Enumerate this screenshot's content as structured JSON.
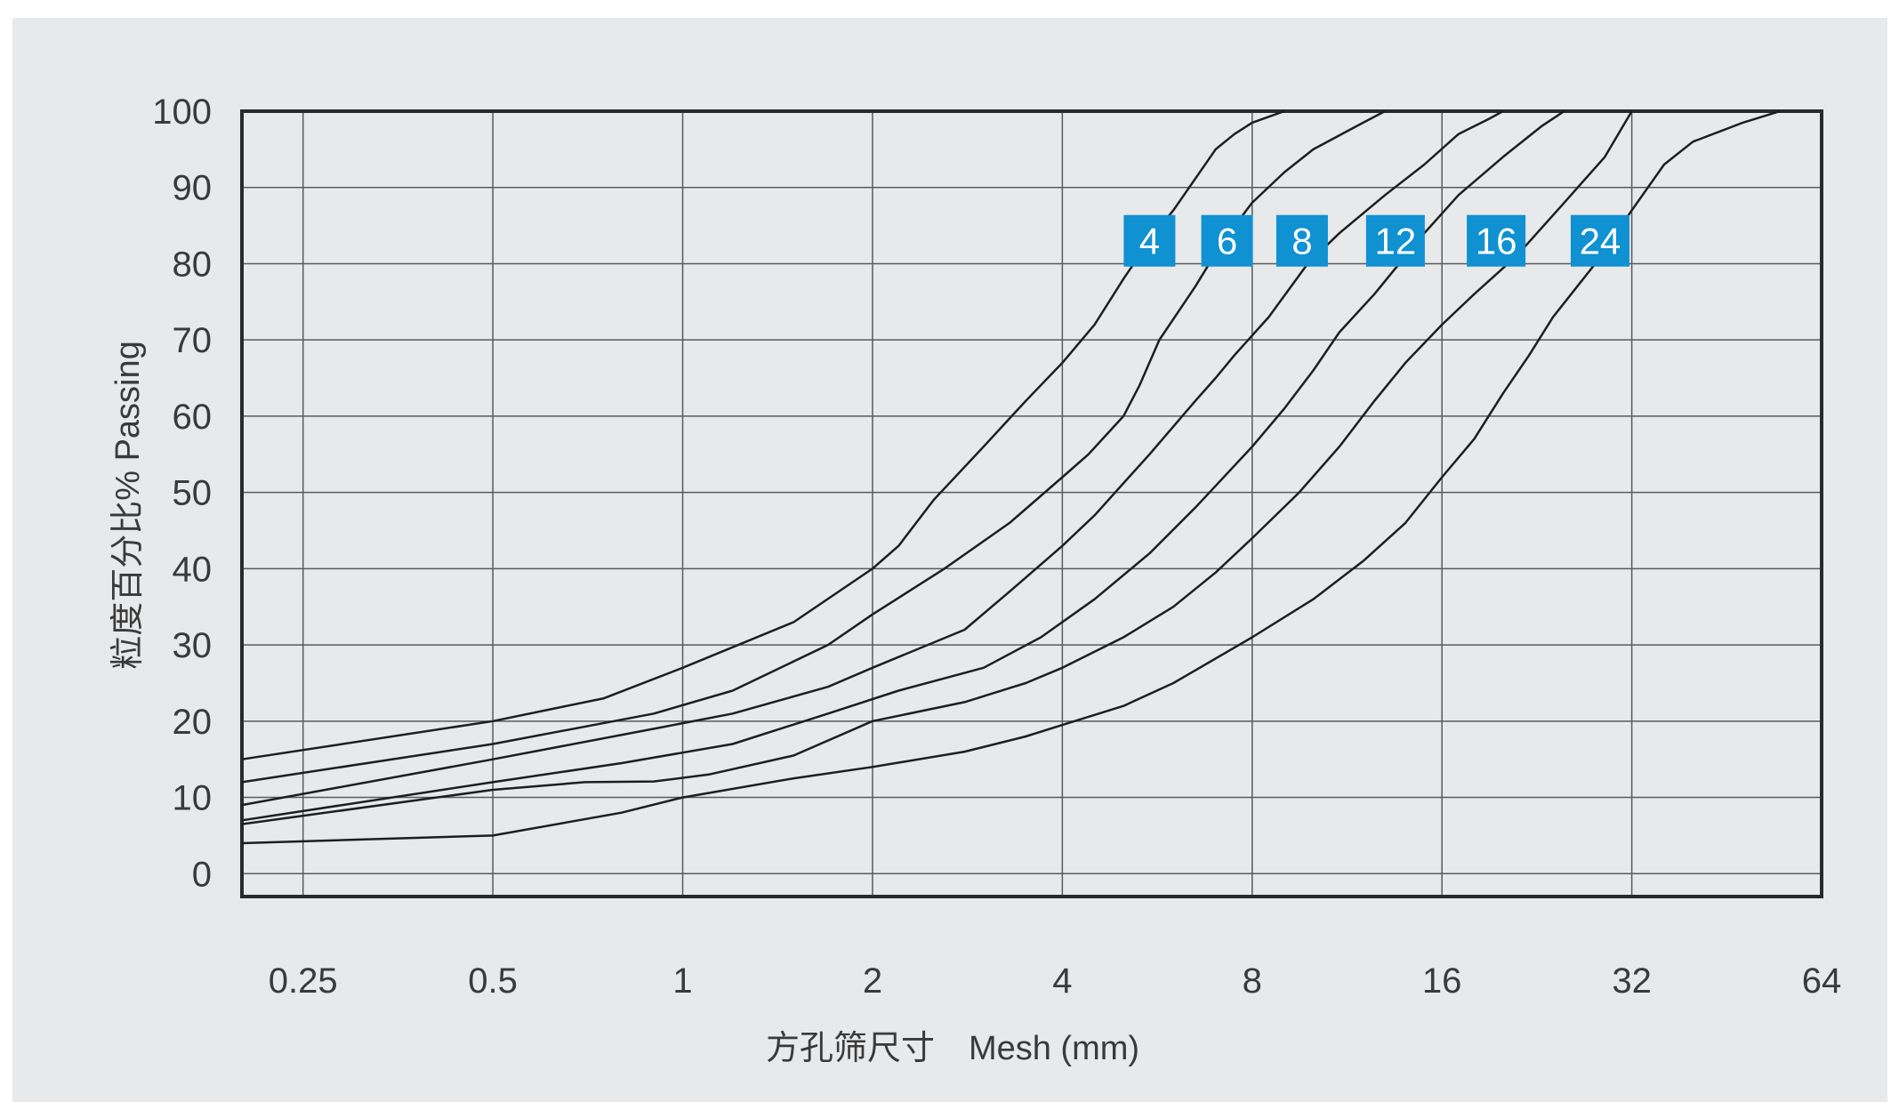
{
  "chart_data": {
    "type": "line",
    "xlabel": "方孔筛尺寸　Mesh (mm)",
    "ylabel": "粒度百分比% Passing",
    "x_scale": "log2",
    "xlim": [
      0.2,
      64
    ],
    "ylim": [
      -3,
      100
    ],
    "x_ticks": [
      {
        "value": 0.25,
        "label": "0.25"
      },
      {
        "value": 0.5,
        "label": "0.5"
      },
      {
        "value": 1,
        "label": "1"
      },
      {
        "value": 2,
        "label": "2"
      },
      {
        "value": 4,
        "label": "4"
      },
      {
        "value": 8,
        "label": "8"
      },
      {
        "value": 16,
        "label": "16"
      },
      {
        "value": 32,
        "label": "32"
      },
      {
        "value": 64,
        "label": "64"
      }
    ],
    "y_ticks": [
      0,
      10,
      20,
      30,
      40,
      50,
      60,
      70,
      80,
      90,
      100
    ],
    "grid": true,
    "label_color": "#0f91d2",
    "series": [
      {
        "name": "4",
        "label_x": 5.5,
        "label_y": 83,
        "points": [
          [
            0.2,
            15
          ],
          [
            0.5,
            20
          ],
          [
            0.75,
            23
          ],
          [
            1,
            27
          ],
          [
            1.5,
            33
          ],
          [
            2,
            40
          ],
          [
            2.2,
            43
          ],
          [
            2.5,
            49
          ],
          [
            3,
            56
          ],
          [
            3.5,
            62
          ],
          [
            4,
            67
          ],
          [
            4.5,
            72
          ],
          [
            5,
            78
          ],
          [
            5.6,
            84
          ],
          [
            6,
            87
          ],
          [
            7,
            95
          ],
          [
            7.5,
            97
          ],
          [
            8,
            98.5
          ],
          [
            9,
            100
          ]
        ]
      },
      {
        "name": "6",
        "label_x": 7.3,
        "label_y": 83,
        "points": [
          [
            0.2,
            12
          ],
          [
            0.5,
            17
          ],
          [
            0.9,
            21
          ],
          [
            1.2,
            24
          ],
          [
            1.7,
            30
          ],
          [
            2,
            34
          ],
          [
            2.6,
            40
          ],
          [
            3.3,
            46
          ],
          [
            4,
            52
          ],
          [
            4.4,
            55
          ],
          [
            5,
            60
          ],
          [
            5.3,
            64
          ],
          [
            5.7,
            70
          ],
          [
            6.5,
            77
          ],
          [
            7.2,
            83
          ],
          [
            8,
            88
          ],
          [
            9,
            92
          ],
          [
            10,
            95
          ],
          [
            12,
            98.5
          ],
          [
            13,
            100
          ]
        ]
      },
      {
        "name": "8",
        "label_x": 9.6,
        "label_y": 83,
        "points": [
          [
            0.2,
            9
          ],
          [
            0.5,
            15
          ],
          [
            0.9,
            19
          ],
          [
            1.2,
            21
          ],
          [
            1.7,
            24.5
          ],
          [
            2,
            27
          ],
          [
            2.8,
            32
          ],
          [
            3.3,
            37
          ],
          [
            4,
            43
          ],
          [
            4.5,
            47
          ],
          [
            5.5,
            55
          ],
          [
            6.5,
            62
          ],
          [
            7,
            65
          ],
          [
            7.5,
            68
          ],
          [
            8.5,
            73
          ],
          [
            9.8,
            80
          ],
          [
            11,
            84
          ],
          [
            13,
            89
          ],
          [
            15,
            93
          ],
          [
            17,
            97
          ],
          [
            19,
            99
          ],
          [
            20,
            100
          ]
        ]
      },
      {
        "name": "12",
        "label_x": 13.5,
        "label_y": 83,
        "points": [
          [
            0.2,
            7
          ],
          [
            0.5,
            12
          ],
          [
            0.8,
            14.5
          ],
          [
            1.2,
            17
          ],
          [
            1.7,
            21
          ],
          [
            2.2,
            24
          ],
          [
            3,
            27
          ],
          [
            3.7,
            31
          ],
          [
            4.5,
            36
          ],
          [
            5.5,
            42
          ],
          [
            6.5,
            48
          ],
          [
            8,
            56
          ],
          [
            9,
            61
          ],
          [
            10,
            66
          ],
          [
            11,
            71
          ],
          [
            12.5,
            76
          ],
          [
            14,
            81
          ],
          [
            15,
            84
          ],
          [
            17,
            89
          ],
          [
            20,
            94
          ],
          [
            23,
            98
          ],
          [
            25,
            100
          ]
        ]
      },
      {
        "name": "16",
        "label_x": 19.5,
        "label_y": 83,
        "points": [
          [
            0.2,
            6.5
          ],
          [
            0.5,
            11
          ],
          [
            0.7,
            12
          ],
          [
            0.9,
            12.1
          ],
          [
            1.1,
            13
          ],
          [
            1.5,
            15.5
          ],
          [
            2,
            20
          ],
          [
            2.8,
            22.5
          ],
          [
            3.5,
            25
          ],
          [
            4,
            27
          ],
          [
            5,
            31
          ],
          [
            6,
            35
          ],
          [
            7,
            39.5
          ],
          [
            8,
            44
          ],
          [
            9.5,
            50
          ],
          [
            11,
            56
          ],
          [
            12.5,
            62
          ],
          [
            14,
            67
          ],
          [
            16,
            72
          ],
          [
            18,
            76
          ],
          [
            21,
            81
          ],
          [
            25,
            88
          ],
          [
            29,
            94
          ],
          [
            32,
            100
          ]
        ]
      },
      {
        "name": "24",
        "label_x": 28.5,
        "label_y": 83,
        "points": [
          [
            0.2,
            4
          ],
          [
            0.5,
            5
          ],
          [
            0.8,
            8
          ],
          [
            1,
            10
          ],
          [
            1.5,
            12.5
          ],
          [
            2,
            14
          ],
          [
            2.8,
            16
          ],
          [
            3.5,
            18
          ],
          [
            4,
            19.5
          ],
          [
            5,
            22
          ],
          [
            6,
            25
          ],
          [
            8,
            31
          ],
          [
            10,
            36
          ],
          [
            12,
            41
          ],
          [
            14,
            46
          ],
          [
            16,
            52
          ],
          [
            18,
            57
          ],
          [
            20,
            63
          ],
          [
            22,
            68
          ],
          [
            24,
            73
          ],
          [
            28,
            80
          ],
          [
            32,
            87
          ],
          [
            36,
            93
          ],
          [
            40,
            96
          ],
          [
            48,
            98.5
          ],
          [
            55,
            100
          ]
        ]
      }
    ]
  }
}
